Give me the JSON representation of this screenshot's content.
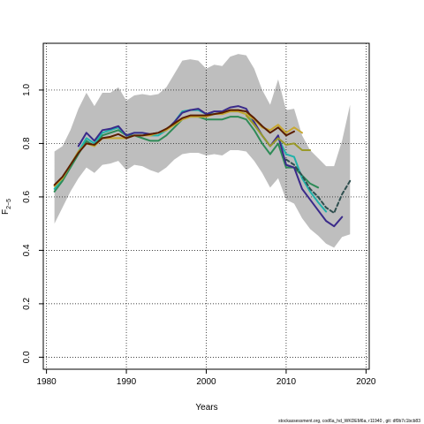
{
  "chart_data": {
    "type": "line",
    "xlabel": "Years",
    "ylabel": "F",
    "ylabel_subscript": "2−5",
    "xlim": [
      1980,
      2020
    ],
    "ylim": [
      0.0,
      1.2
    ],
    "xticks": [
      "1980",
      "1990",
      "2000",
      "2010",
      "2020"
    ],
    "yticks": [
      "0.0",
      "0.2",
      "0.4",
      "0.6",
      "0.8",
      "1.0"
    ],
    "grid": true,
    "credit": "stockassessment.org, cod6a_hd_WKDEM6a, r11940 , git: df0b7c1bcb83",
    "confidence_band": {
      "x": [
        1981,
        1982,
        1983,
        1984,
        1985,
        1986,
        1987,
        1988,
        1989,
        1990,
        1991,
        1992,
        1993,
        1994,
        1995,
        1996,
        1997,
        1998,
        1999,
        2000,
        2001,
        2002,
        2003,
        2004,
        2005,
        2006,
        2007,
        2008,
        2009,
        2010,
        2011,
        2012,
        2013,
        2014,
        2015,
        2016,
        2017,
        2018
      ],
      "upper": [
        0.77,
        0.79,
        0.85,
        0.93,
        0.99,
        0.94,
        0.99,
        0.99,
        1.01,
        0.96,
        0.98,
        0.985,
        0.98,
        0.985,
        1.01,
        1.06,
        1.11,
        1.115,
        1.11,
        1.08,
        1.095,
        1.09,
        1.125,
        1.135,
        1.13,
        1.08,
        1.0,
        0.945,
        1.04,
        0.925,
        0.93,
        0.83,
        0.775,
        0.745,
        0.715,
        0.715,
        0.81,
        0.945
      ],
      "lower": [
        0.5,
        0.56,
        0.62,
        0.67,
        0.71,
        0.69,
        0.72,
        0.725,
        0.735,
        0.7,
        0.72,
        0.715,
        0.7,
        0.69,
        0.71,
        0.74,
        0.76,
        0.765,
        0.765,
        0.755,
        0.76,
        0.755,
        0.775,
        0.775,
        0.77,
        0.735,
        0.69,
        0.635,
        0.67,
        0.59,
        0.575,
        0.52,
        0.48,
        0.455,
        0.425,
        0.41,
        0.45,
        0.46
      ]
    },
    "series": [
      {
        "color": "#2e8b57",
        "x": [
          1981,
          1982,
          1983,
          1984,
          1985,
          1986,
          1987,
          1988,
          1989,
          1990,
          1991,
          1992,
          1993,
          1994,
          1995,
          1996,
          1997,
          1998,
          1999,
          2000,
          2001,
          2002,
          2003,
          2004,
          2005,
          2006,
          2007,
          2008,
          2009,
          2010,
          2011,
          2012,
          2013,
          2014
        ],
        "values": [
          0.62,
          0.66,
          0.71,
          0.76,
          0.81,
          0.79,
          0.83,
          0.84,
          0.85,
          0.83,
          0.83,
          0.82,
          0.81,
          0.81,
          0.83,
          0.86,
          0.89,
          0.9,
          0.9,
          0.89,
          0.89,
          0.89,
          0.9,
          0.9,
          0.89,
          0.85,
          0.8,
          0.76,
          0.8,
          0.71,
          0.71,
          0.68,
          0.65,
          0.635
        ]
      },
      {
        "color": "#20b2aa",
        "x": [
          1981,
          1982,
          1983,
          1984,
          1985,
          1986,
          1987,
          1988,
          1989,
          1990,
          1991,
          1992,
          1993,
          1994,
          1995,
          1996,
          1997,
          1998,
          1999,
          2000,
          2001,
          2002,
          2003,
          2004,
          2005,
          2006,
          2007,
          2008,
          2009,
          2010,
          2011,
          2012,
          2013,
          2014,
          2015
        ],
        "values": [
          0.63,
          0.67,
          0.72,
          0.77,
          0.82,
          0.8,
          0.84,
          0.85,
          0.86,
          0.83,
          0.84,
          0.84,
          0.83,
          0.83,
          0.85,
          0.88,
          0.92,
          0.925,
          0.925,
          0.91,
          0.91,
          0.915,
          0.92,
          0.92,
          0.91,
          0.87,
          0.83,
          0.79,
          0.82,
          0.76,
          0.75,
          0.67,
          0.62,
          0.58,
          0.545
        ]
      },
      {
        "color": "#2f4f4f",
        "dashed": true,
        "x": [
          2010,
          2011,
          2012,
          2013,
          2014,
          2015,
          2016,
          2017,
          2018
        ],
        "values": [
          0.74,
          0.72,
          0.68,
          0.63,
          0.6,
          0.56,
          0.54,
          0.61,
          0.66
        ]
      },
      {
        "color": "#3a2a8a",
        "x": [
          1984,
          1985,
          1986,
          1987,
          1988,
          1989,
          1990,
          1991,
          1992,
          1993,
          1994,
          1995,
          1996,
          1997,
          1998,
          1999,
          2000,
          2001,
          2002,
          2003,
          2004,
          2005,
          2006,
          2007,
          2008,
          2009,
          2010,
          2011,
          2012,
          2013,
          2014,
          2015,
          2016,
          2017
        ],
        "values": [
          0.79,
          0.84,
          0.81,
          0.85,
          0.855,
          0.865,
          0.83,
          0.84,
          0.84,
          0.835,
          0.84,
          0.85,
          0.88,
          0.915,
          0.925,
          0.93,
          0.91,
          0.92,
          0.92,
          0.935,
          0.94,
          0.93,
          0.88,
          0.83,
          0.79,
          0.83,
          0.72,
          0.71,
          0.63,
          0.59,
          0.55,
          0.51,
          0.49,
          0.525
        ]
      },
      {
        "color": "#c8a830",
        "x": [
          1981,
          1982,
          1983,
          1984,
          1985,
          1986,
          1987,
          1988,
          1989,
          1990,
          1991,
          1992,
          1993,
          1994,
          1995,
          1996,
          1997,
          1998,
          1999,
          2000,
          2001,
          2002,
          2003,
          2004,
          2005,
          2006,
          2007,
          2008,
          2009,
          2010,
          2011,
          2012
        ],
        "values": [
          0.64,
          0.67,
          0.72,
          0.77,
          0.8,
          0.79,
          0.82,
          0.82,
          0.82,
          0.82,
          0.83,
          0.83,
          0.83,
          0.84,
          0.85,
          0.87,
          0.89,
          0.9,
          0.9,
          0.9,
          0.91,
          0.91,
          0.92,
          0.92,
          0.91,
          0.89,
          0.86,
          0.85,
          0.87,
          0.84,
          0.86,
          0.84
        ]
      },
      {
        "color": "#9a9a2a",
        "x": [
          2005,
          2006,
          2007,
          2008,
          2009,
          2010,
          2011,
          2012,
          2013
        ],
        "values": [
          0.905,
          0.87,
          0.83,
          0.79,
          0.82,
          0.795,
          0.8,
          0.775,
          0.775
        ]
      },
      {
        "color": "#5a1e00",
        "x": [
          1981,
          1982,
          1983,
          1984,
          1985,
          1986,
          1987,
          1988,
          1989,
          1990,
          1991,
          1992,
          1993,
          1994,
          1995,
          1996,
          1997,
          1998,
          1999,
          2000,
          2001,
          2002,
          2003,
          2004,
          2005,
          2006,
          2007,
          2008,
          2009,
          2010,
          2011
        ],
        "values": [
          0.645,
          0.675,
          0.72,
          0.765,
          0.8,
          0.795,
          0.82,
          0.825,
          0.835,
          0.82,
          0.83,
          0.83,
          0.835,
          0.84,
          0.855,
          0.875,
          0.895,
          0.905,
          0.905,
          0.905,
          0.91,
          0.915,
          0.925,
          0.925,
          0.92,
          0.895,
          0.865,
          0.84,
          0.86,
          0.83,
          0.845
        ]
      }
    ]
  }
}
